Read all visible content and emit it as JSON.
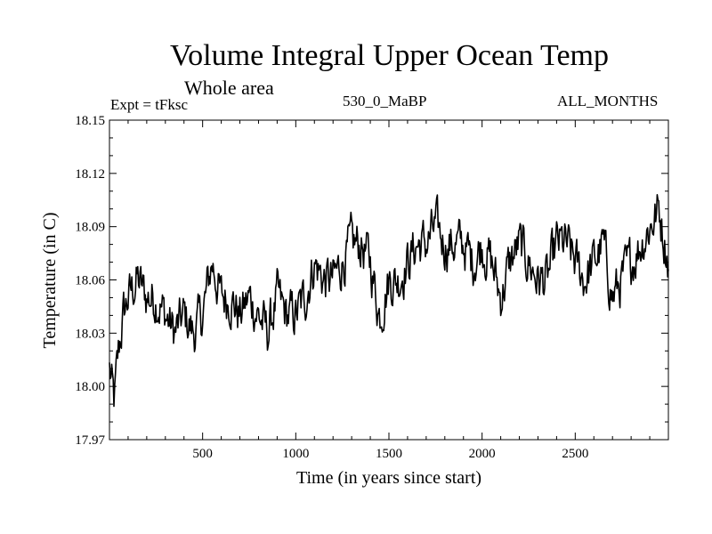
{
  "chart_data": {
    "type": "line",
    "title": "Volume Integral Upper Ocean Temp",
    "subtitle": "Whole area",
    "experiment_label": "Expt = tFksc",
    "run_label": "530_0_MaBP",
    "period_label": "ALL_MONTHS",
    "xlabel": "Time (in years since start)",
    "ylabel": "Temperature (in C)",
    "xlim": [
      0,
      3000
    ],
    "ylim": [
      17.97,
      18.15
    ],
    "x_ticks": [
      500,
      1000,
      1500,
      2000,
      2500
    ],
    "y_ticks": [
      "17.97",
      "18.00",
      "18.03",
      "18.06",
      "18.09",
      "18.12",
      "18.15"
    ],
    "series": [
      {
        "name": "Volume integral upper ocean temperature",
        "x": [
          0,
          25,
          50,
          75,
          100,
          150,
          200,
          250,
          300,
          350,
          400,
          450,
          500,
          550,
          600,
          650,
          700,
          750,
          800,
          850,
          900,
          950,
          1000,
          1050,
          1100,
          1150,
          1200,
          1250,
          1300,
          1350,
          1400,
          1450,
          1500,
          1550,
          1600,
          1650,
          1700,
          1750,
          1800,
          1850,
          1900,
          1950,
          2000,
          2050,
          2100,
          2150,
          2200,
          2250,
          2300,
          2350,
          2400,
          2450,
          2500,
          2550,
          2600,
          2650,
          2700,
          2750,
          2800,
          2850,
          2900,
          2950,
          3000
        ],
        "values": [
          18.01,
          17.99,
          18.02,
          18.04,
          18.05,
          18.06,
          18.05,
          18.05,
          18.04,
          18.03,
          18.04,
          18.03,
          18.04,
          18.07,
          18.05,
          18.05,
          18.04,
          18.05,
          18.04,
          18.03,
          18.05,
          18.04,
          18.04,
          18.05,
          18.07,
          18.06,
          18.06,
          18.07,
          18.08,
          18.08,
          18.07,
          18.04,
          18.06,
          18.06,
          18.07,
          18.08,
          18.08,
          18.09,
          18.08,
          18.08,
          18.08,
          18.07,
          18.08,
          18.07,
          18.05,
          18.07,
          18.08,
          18.07,
          18.06,
          18.06,
          18.08,
          18.08,
          18.07,
          18.06,
          18.07,
          18.08,
          18.05,
          18.06,
          18.07,
          18.08,
          18.09,
          18.1,
          18.07
        ]
      }
    ]
  }
}
